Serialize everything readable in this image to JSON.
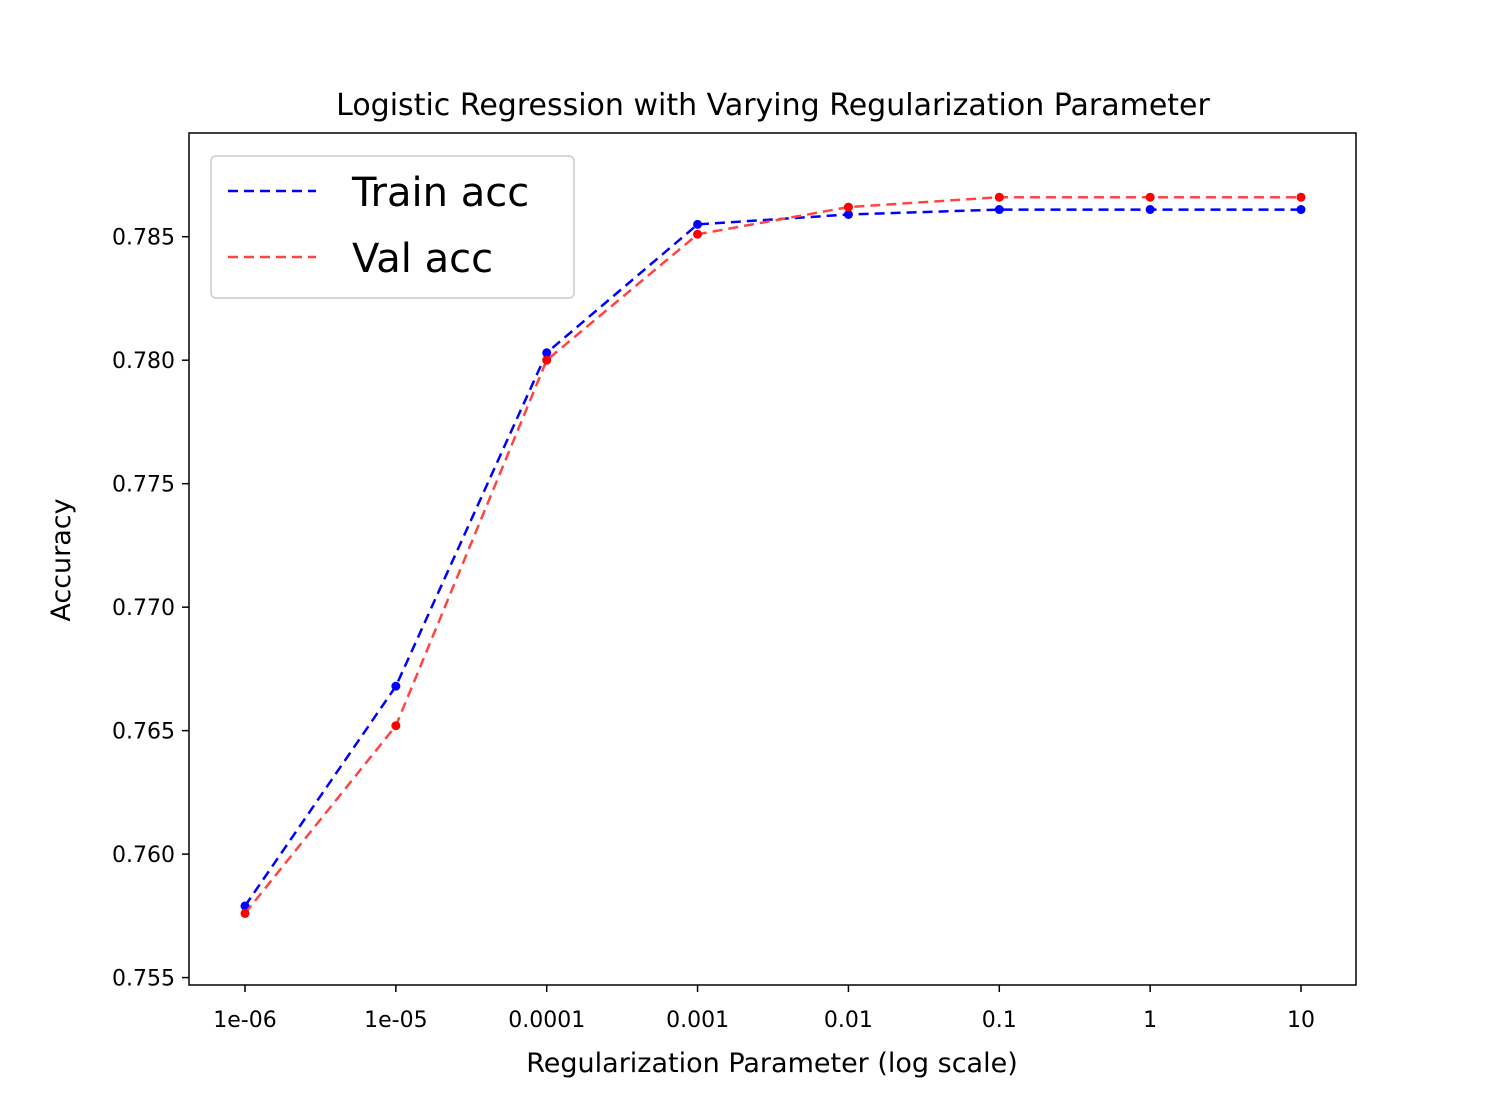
{
  "chart_data": {
    "type": "line",
    "title": "Logistic Regression with Varying Regularization Parameter",
    "xlabel": "Regularization Parameter (log scale)",
    "ylabel": "Accuracy",
    "x_scale": "log",
    "categories": [
      "1e-06",
      "1e-05",
      "0.0001",
      "0.001",
      "0.01",
      "0.1",
      "1",
      "10"
    ],
    "x": [
      1e-06,
      1e-05,
      0.0001,
      0.001,
      0.01,
      0.1,
      1,
      10
    ],
    "ylim": [
      0.7547,
      0.7892
    ],
    "yticks": [
      "0.755",
      "0.760",
      "0.765",
      "0.770",
      "0.775",
      "0.780",
      "0.785"
    ],
    "ytick_values": [
      0.755,
      0.76,
      0.765,
      0.77,
      0.775,
      0.78,
      0.785
    ],
    "grid": false,
    "legend_position": "top-left",
    "series": [
      {
        "name": "Train acc",
        "color": "#0000ff",
        "marker_color": "#0000ff",
        "line_style": "dashed",
        "values": [
          0.7579,
          0.7668,
          0.7803,
          0.7855,
          0.7859,
          0.7861,
          0.7861,
          0.7861
        ]
      },
      {
        "name": "Val acc",
        "color": "#ff4444",
        "marker_color": "#ff0000",
        "line_style": "dashed",
        "values": [
          0.7576,
          0.7652,
          0.78,
          0.7851,
          0.7862,
          0.7866,
          0.7866,
          0.7866
        ]
      }
    ]
  }
}
